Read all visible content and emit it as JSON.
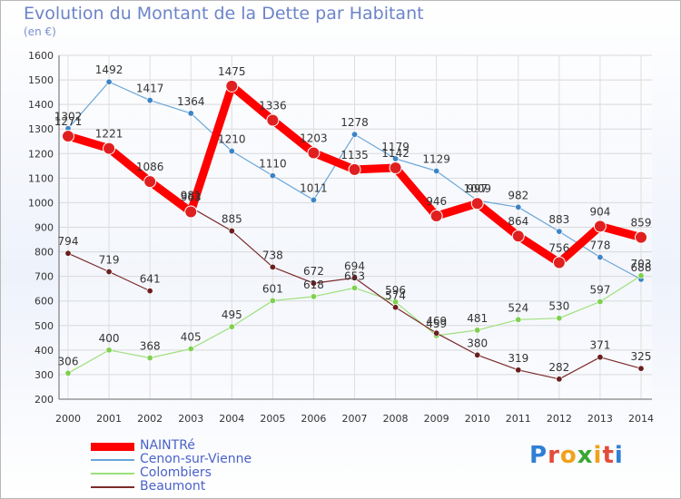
{
  "title": "Evolution du Montant de la Dette par Habitant",
  "subtitle": "(en €)",
  "logo": {
    "letters": [
      "P",
      "r",
      "o",
      "x",
      "i",
      "t",
      "i"
    ],
    "colors": [
      "#2f7fd6",
      "#e24b3b",
      "#f0a21c",
      "#3aa635",
      "#f0a21c",
      "#e24b3b",
      "#2f7fd6"
    ]
  },
  "chart_data": {
    "type": "line",
    "x": [
      "2000",
      "2001",
      "2002",
      "2003",
      "2004",
      "2005",
      "2006",
      "2007",
      "2008",
      "2009",
      "2010",
      "2011",
      "2012",
      "2013",
      "2014"
    ],
    "ylim": [
      200,
      1600
    ],
    "yticks": [
      200,
      300,
      400,
      500,
      600,
      700,
      800,
      900,
      1000,
      1100,
      1200,
      1300,
      1400,
      1500,
      1600
    ],
    "grid": true,
    "legend_position": "bottom-left",
    "series": [
      {
        "name": "NAINTRé",
        "color": "#ff0000",
        "marker": "#e02020",
        "width": 9,
        "values": [
          1271,
          1221,
          1086,
          963,
          1475,
          1336,
          1203,
          1135,
          1142,
          946,
          997,
          864,
          756,
          904,
          859
        ]
      },
      {
        "name": "Cenon-sur-Vienne",
        "color": "#6aa6d8",
        "marker": "#3d84c6",
        "width": 1.2,
        "values": [
          1302,
          1492,
          1417,
          1364,
          1210,
          1110,
          1011,
          1278,
          1179,
          1129,
          1009,
          982,
          883,
          778,
          688
        ]
      },
      {
        "name": "Colombiers",
        "color": "#9ee07c",
        "marker": "#7fd04f",
        "width": 1.2,
        "values": [
          306,
          400,
          368,
          405,
          495,
          601,
          618,
          653,
          596,
          459,
          481,
          524,
          530,
          597,
          703
        ]
      },
      {
        "name": "Beaumont",
        "color": "#7b2a2a",
        "marker": "#6a1f1f",
        "width": 1.2,
        "segments": [
          [
            0,
            2
          ],
          [
            3,
            14
          ]
        ],
        "values": [
          794,
          719,
          641,
          981,
          885,
          738,
          672,
          694,
          574,
          469,
          380,
          319,
          282,
          371,
          325
        ]
      }
    ]
  }
}
